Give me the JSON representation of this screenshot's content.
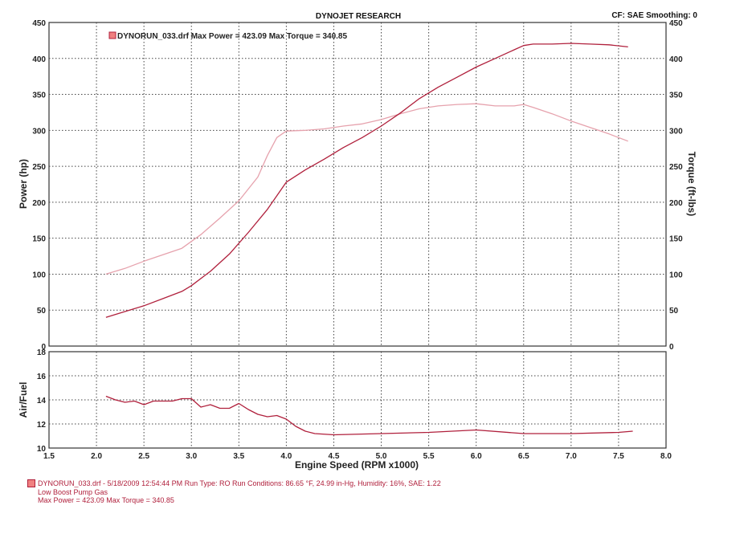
{
  "header": {
    "title": "DYNOJET RESEARCH",
    "right": "CF: SAE  Smoothing: 0"
  },
  "legend": {
    "label": "DYNORUN_033.drf Max Power = 423.09     Max Torque = 340.85"
  },
  "footer": {
    "line1": "DYNORUN_033.drf - 5/18/2009 12:54:44 PM  Run Type: RO  Run Conditions: 86.65 °F, 24.99 in-Hg,  Humidity:  16%, SAE: 1.22",
    "line2": "Low Boost Pump Gas",
    "line3": "Max Power = 423.09  Max Torque = 340.85"
  },
  "colors": {
    "power": "#b0203c",
    "torque": "#e6a2ad",
    "afr": "#b0203c",
    "grid": "#444444",
    "frame": "#333333"
  },
  "chart_data": [
    {
      "type": "line",
      "xlabel": "",
      "ylabel": "Power (hp)",
      "y2label": "Torque (ft-lbs)",
      "xlim": [
        1.5,
        8.0
      ],
      "ylim": [
        0,
        450
      ],
      "y2lim": [
        0,
        450
      ],
      "grid": true,
      "legend_position": "top-left",
      "yticks": [
        "0",
        "50",
        "100",
        "150",
        "200",
        "250",
        "300",
        "350",
        "400",
        "450"
      ],
      "y2ticks": [
        "0",
        "50",
        "100",
        "150",
        "200",
        "250",
        "300",
        "350",
        "400",
        "450"
      ],
      "series": [
        {
          "name": "Power",
          "axis": "left",
          "x": [
            2.1,
            2.3,
            2.5,
            2.7,
            2.9,
            3.0,
            3.2,
            3.4,
            3.6,
            3.8,
            4.0,
            4.2,
            4.4,
            4.6,
            4.8,
            5.0,
            5.2,
            5.4,
            5.6,
            5.8,
            6.0,
            6.2,
            6.4,
            6.5,
            6.6,
            6.8,
            7.0,
            7.2,
            7.4,
            7.6
          ],
          "y": [
            40,
            48,
            56,
            66,
            76,
            84,
            104,
            128,
            158,
            190,
            228,
            245,
            260,
            276,
            290,
            306,
            324,
            344,
            360,
            374,
            388,
            400,
            412,
            418,
            420,
            420,
            421,
            420,
            419,
            416
          ]
        },
        {
          "name": "Torque",
          "axis": "right",
          "x": [
            2.1,
            2.3,
            2.5,
            2.7,
            2.9,
            3.1,
            3.3,
            3.5,
            3.7,
            3.8,
            3.9,
            4.0,
            4.2,
            4.4,
            4.6,
            4.8,
            5.0,
            5.2,
            5.4,
            5.6,
            5.8,
            6.0,
            6.2,
            6.4,
            6.5,
            6.6,
            6.8,
            7.0,
            7.2,
            7.4,
            7.6
          ],
          "y": [
            100,
            108,
            118,
            127,
            136,
            155,
            178,
            202,
            235,
            265,
            290,
            299,
            300,
            302,
            306,
            309,
            315,
            323,
            330,
            334,
            336,
            337,
            334,
            334,
            336,
            332,
            323,
            313,
            304,
            295,
            285
          ]
        }
      ]
    },
    {
      "type": "line",
      "xlabel": "Engine Speed (RPM x1000)",
      "ylabel": "Air/Fuel",
      "xlim": [
        1.5,
        8.0
      ],
      "ylim": [
        10,
        18
      ],
      "grid": true,
      "xticks": [
        "1.5",
        "2.0",
        "2.5",
        "3.0",
        "3.5",
        "4.0",
        "4.5",
        "5.0",
        "5.5",
        "6.0",
        "6.5",
        "7.0",
        "7.5",
        "8.0"
      ],
      "yticks": [
        "10",
        "12",
        "14",
        "16",
        "18"
      ],
      "series": [
        {
          "name": "Air/Fuel",
          "x": [
            2.1,
            2.2,
            2.3,
            2.4,
            2.5,
            2.6,
            2.7,
            2.8,
            2.9,
            3.0,
            3.1,
            3.2,
            3.3,
            3.4,
            3.5,
            3.6,
            3.7,
            3.8,
            3.9,
            4.0,
            4.1,
            4.2,
            4.3,
            4.5,
            5.0,
            5.5,
            6.0,
            6.5,
            7.0,
            7.5,
            7.65
          ],
          "y": [
            14.3,
            14.0,
            13.8,
            13.9,
            13.6,
            13.9,
            13.9,
            13.9,
            14.1,
            14.1,
            13.4,
            13.6,
            13.3,
            13.3,
            13.7,
            13.2,
            12.8,
            12.6,
            12.7,
            12.4,
            11.8,
            11.4,
            11.2,
            11.1,
            11.2,
            11.3,
            11.5,
            11.2,
            11.2,
            11.3,
            11.4
          ]
        }
      ]
    }
  ]
}
